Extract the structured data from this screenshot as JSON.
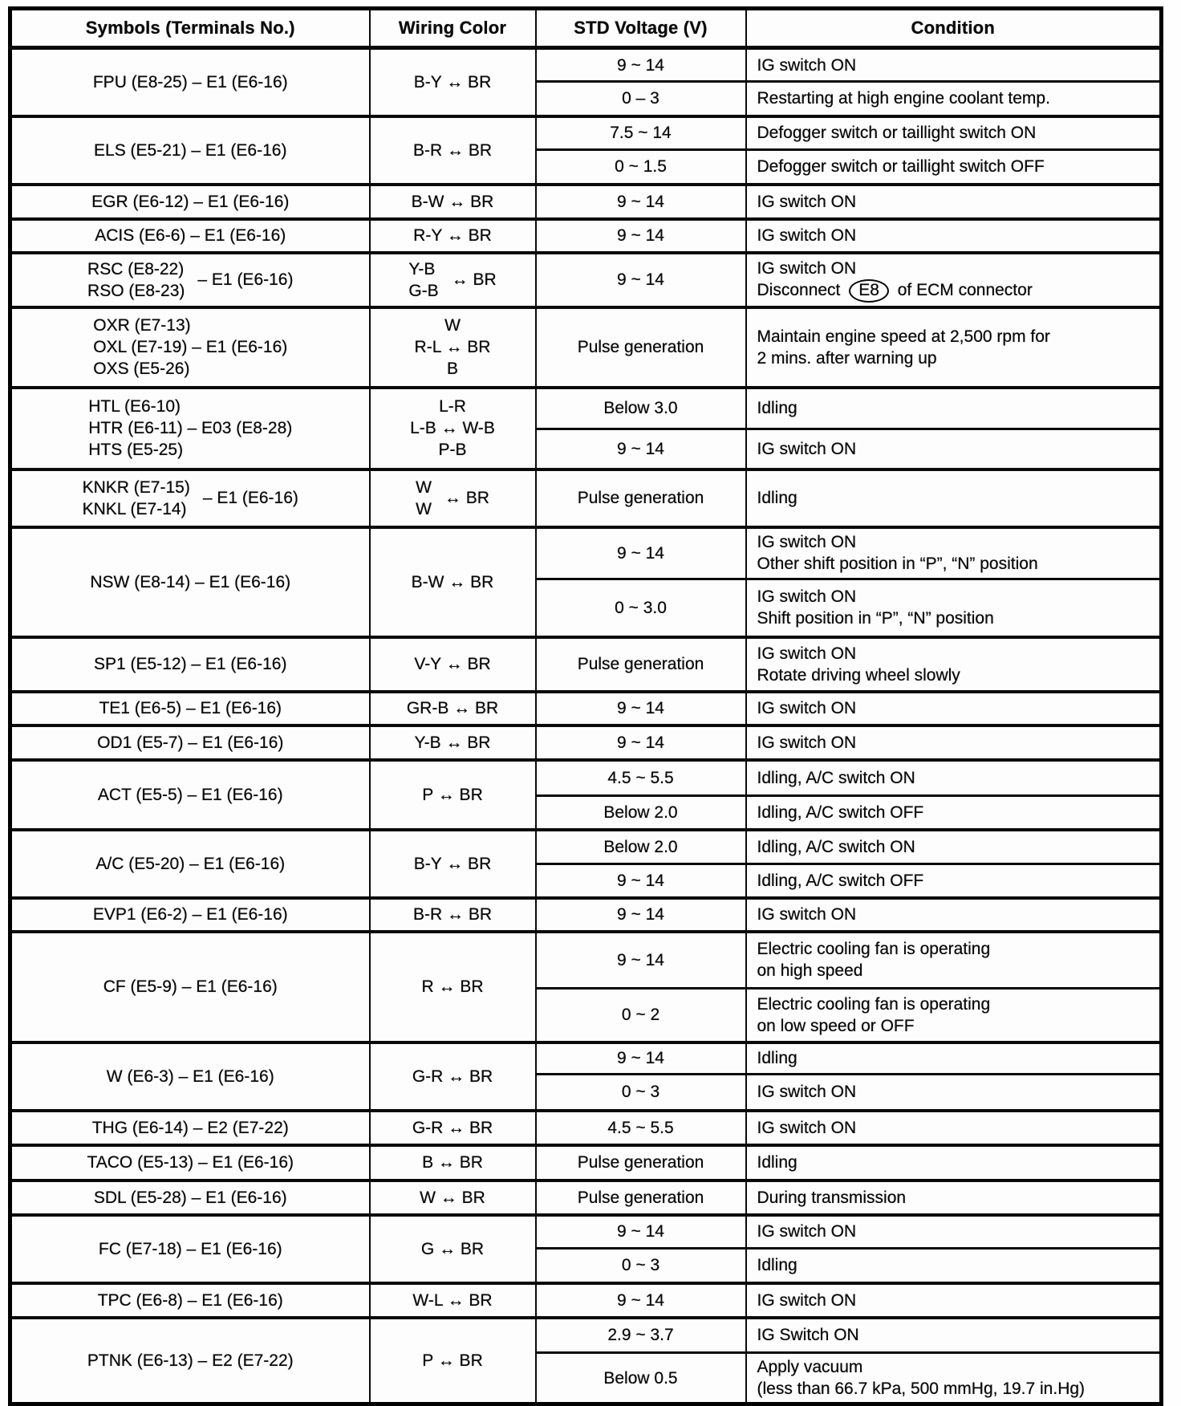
{
  "header": {
    "symbols": "Symbols (Terminals No.)",
    "wiring": "Wiring Color",
    "voltage": "STD Voltage (V)",
    "condition": "Condition"
  },
  "rows": [
    {
      "symbol": {
        "lines": [
          "FPU (E8-25)  –  E1 (E6-16)"
        ]
      },
      "wiring": {
        "lines": [
          "B-Y  ↔  BR"
        ]
      },
      "subrows": [
        {
          "voltage": "9 ~ 14",
          "condition": [
            "IG switch ON"
          ]
        },
        {
          "voltage": "0 – 3",
          "condition": [
            "Restarting at high engine coolant temp."
          ]
        }
      ]
    },
    {
      "symbol": {
        "lines": [
          "ELS (E5-21)  –  E1 (E6-16)"
        ]
      },
      "wiring": {
        "lines": [
          "B-R  ↔  BR"
        ]
      },
      "subrows": [
        {
          "voltage": "7.5 ~ 14",
          "condition": [
            "Defogger switch or taillight switch ON"
          ]
        },
        {
          "voltage": "0 ~ 1.5",
          "condition": [
            "Defogger switch or taillight switch OFF"
          ]
        }
      ]
    },
    {
      "symbol": {
        "lines": [
          "EGR (E6-12)  –  E1 (E6-16)"
        ]
      },
      "wiring": {
        "lines": [
          "B-W  ↔  BR"
        ]
      },
      "subrows": [
        {
          "voltage": "9 ~ 14",
          "condition": [
            "IG switch ON"
          ]
        }
      ]
    },
    {
      "symbol": {
        "lines": [
          "ACIS (E6-6)  –  E1 (E6-16)"
        ]
      },
      "wiring": {
        "lines": [
          "R-Y  ↔  BR"
        ]
      },
      "subrows": [
        {
          "voltage": "9 ~ 14",
          "condition": [
            "IG switch ON"
          ]
        }
      ]
    },
    {
      "symbol": {
        "stack": [
          "RSC (E8-22)",
          "RSO (E8-23)"
        ],
        "side": "–  E1 (E6-16)"
      },
      "wiring": {
        "stack": [
          "Y-B",
          "G-B"
        ],
        "side": "↔  BR"
      },
      "subrows": [
        {
          "voltage": "9 ~ 14",
          "condition": [
            "IG switch ON",
            {
              "pre": "Disconnect ",
              "oval": "E8",
              "post": " of ECM connector"
            }
          ]
        }
      ]
    },
    {
      "symbol": {
        "lines": [
          "OXR (E7-13)",
          "OXL (E7-19)  –  E1 (E6-16)",
          "OXS (E5-26)"
        ]
      },
      "wiring": {
        "lines": [
          "W",
          "R-L  ↔  BR",
          "B"
        ]
      },
      "subrows": [
        {
          "voltage": "Pulse generation",
          "condition": [
            "Maintain engine speed at 2,500 rpm for",
            "2 mins. after warning up"
          ]
        }
      ]
    },
    {
      "symbol": {
        "lines": [
          "HTL (E6-10)",
          "HTR (E6-11)  –  E03 (E8-28)",
          "HTS (E5-25)"
        ]
      },
      "wiring": {
        "lines": [
          "L-R",
          "L-B  ↔  W-B",
          "P-B"
        ]
      },
      "subrows": [
        {
          "voltage": "Below 3.0",
          "condition": [
            "Idling"
          ]
        },
        {
          "voltage": "9 ~ 14",
          "condition": [
            "IG switch ON"
          ]
        }
      ]
    },
    {
      "symbol": {
        "stack": [
          "KNKR (E7-15)",
          "KNKL (E7-14)"
        ],
        "side": "–  E1 (E6-16)"
      },
      "wiring": {
        "stack": [
          "W",
          "W"
        ],
        "side": "↔  BR"
      },
      "subrows": [
        {
          "voltage": "Pulse generation",
          "condition": [
            "Idling"
          ]
        }
      ]
    },
    {
      "symbol": {
        "lines": [
          "NSW (E8-14)  –  E1 (E6-16)"
        ]
      },
      "wiring": {
        "lines": [
          "B-W  ↔  BR"
        ]
      },
      "subrows": [
        {
          "voltage": "9 ~ 14",
          "condition": [
            "IG switch ON",
            "Other shift position in “P”, “N” position"
          ]
        },
        {
          "voltage": "0 ~ 3.0",
          "condition": [
            "IG switch ON",
            "Shift position in “P”, “N” position"
          ]
        }
      ]
    },
    {
      "symbol": {
        "lines": [
          "SP1 (E5-12)  –  E1 (E6-16)"
        ]
      },
      "wiring": {
        "lines": [
          "V-Y  ↔  BR"
        ]
      },
      "subrows": [
        {
          "voltage": "Pulse generation",
          "condition": [
            "IG switch ON",
            "Rotate driving wheel slowly"
          ]
        }
      ]
    },
    {
      "symbol": {
        "lines": [
          "TE1 (E6-5)  –  E1 (E6-16)"
        ]
      },
      "wiring": {
        "lines": [
          "GR-B  ↔  BR"
        ]
      },
      "subrows": [
        {
          "voltage": "9 ~ 14",
          "condition": [
            "IG switch ON"
          ]
        }
      ]
    },
    {
      "symbol": {
        "lines": [
          "OD1 (E5-7)  –  E1 (E6-16)"
        ]
      },
      "wiring": {
        "lines": [
          "Y-B  ↔  BR"
        ]
      },
      "subrows": [
        {
          "voltage": "9 ~ 14",
          "condition": [
            "IG switch ON"
          ]
        }
      ]
    },
    {
      "symbol": {
        "lines": [
          "ACT (E5-5)  –  E1 (E6-16)"
        ]
      },
      "wiring": {
        "lines": [
          "P  ↔  BR"
        ]
      },
      "subrows": [
        {
          "voltage": "4.5 ~ 5.5",
          "condition": [
            "Idling, A/C switch ON"
          ]
        },
        {
          "voltage": "Below 2.0",
          "condition": [
            "Idling, A/C switch OFF"
          ]
        }
      ]
    },
    {
      "symbol": {
        "lines": [
          "A/C (E5-20)  –  E1 (E6-16)"
        ]
      },
      "wiring": {
        "lines": [
          "B-Y  ↔  BR"
        ]
      },
      "subrows": [
        {
          "voltage": "Below 2.0",
          "condition": [
            "Idling, A/C switch ON"
          ]
        },
        {
          "voltage": "9 ~ 14",
          "condition": [
            "Idling, A/C switch OFF"
          ]
        }
      ]
    },
    {
      "symbol": {
        "lines": [
          "EVP1 (E6-2)  –  E1 (E6-16)"
        ]
      },
      "wiring": {
        "lines": [
          "B-R  ↔  BR"
        ]
      },
      "subrows": [
        {
          "voltage": "9 ~ 14",
          "condition": [
            "IG switch ON"
          ]
        }
      ]
    },
    {
      "symbol": {
        "lines": [
          "CF (E5-9)  –  E1 (E6-16)"
        ]
      },
      "wiring": {
        "lines": [
          "R  ↔  BR"
        ]
      },
      "subrows": [
        {
          "voltage": "9 ~ 14",
          "condition": [
            "Electric cooling fan is operating",
            "on high speed"
          ]
        },
        {
          "voltage": "0 ~ 2",
          "condition": [
            "Electric cooling fan is operating",
            "on low speed or OFF"
          ]
        }
      ]
    },
    {
      "symbol": {
        "lines": [
          "W (E6-3)  –  E1 (E6-16)"
        ]
      },
      "wiring": {
        "lines": [
          "G-R  ↔  BR"
        ]
      },
      "subrows": [
        {
          "voltage": "9 ~ 14",
          "condition": [
            "Idling"
          ]
        },
        {
          "voltage": "0 ~ 3",
          "condition": [
            "IG switch ON"
          ]
        }
      ]
    },
    {
      "symbol": {
        "lines": [
          "THG (E6-14)  –  E2 (E7-22)"
        ]
      },
      "wiring": {
        "lines": [
          "G-R  ↔  BR"
        ]
      },
      "subrows": [
        {
          "voltage": "4.5 ~ 5.5",
          "condition": [
            "IG switch ON"
          ]
        }
      ]
    },
    {
      "symbol": {
        "lines": [
          "TACO (E5-13)  –  E1 (E6-16)"
        ]
      },
      "wiring": {
        "lines": [
          "B  ↔  BR"
        ]
      },
      "subrows": [
        {
          "voltage": "Pulse generation",
          "condition": [
            "Idling"
          ]
        }
      ]
    },
    {
      "symbol": {
        "lines": [
          "SDL (E5-28)  –  E1 (E6-16)"
        ]
      },
      "wiring": {
        "lines": [
          "W  ↔  BR"
        ]
      },
      "subrows": [
        {
          "voltage": "Pulse generation",
          "condition": [
            "During transmission"
          ]
        }
      ]
    },
    {
      "symbol": {
        "lines": [
          "FC (E7-18)  –  E1 (E6-16)"
        ]
      },
      "wiring": {
        "lines": [
          "G  ↔  BR"
        ]
      },
      "subrows": [
        {
          "voltage": "9 ~ 14",
          "condition": [
            "IG switch ON"
          ]
        },
        {
          "voltage": "0 ~ 3",
          "condition": [
            "Idling"
          ]
        }
      ]
    },
    {
      "symbol": {
        "lines": [
          "TPC (E6-8)  –  E1 (E6-16)"
        ]
      },
      "wiring": {
        "lines": [
          "W-L  ↔  BR"
        ]
      },
      "subrows": [
        {
          "voltage": "9 ~ 14",
          "condition": [
            "IG switch ON"
          ]
        }
      ]
    },
    {
      "symbol": {
        "lines": [
          "PTNK (E6-13)  –  E2 (E7-22)"
        ]
      },
      "wiring": {
        "lines": [
          "P  ↔  BR"
        ]
      },
      "subrows": [
        {
          "voltage": "2.9 ~ 3.7",
          "condition": [
            "IG Switch ON"
          ]
        },
        {
          "voltage": "Below 0.5",
          "condition": [
            "Apply vacuum",
            "(less than 66.7 kPa, 500 mmHg, 19.7 in.Hg)"
          ]
        }
      ]
    }
  ]
}
